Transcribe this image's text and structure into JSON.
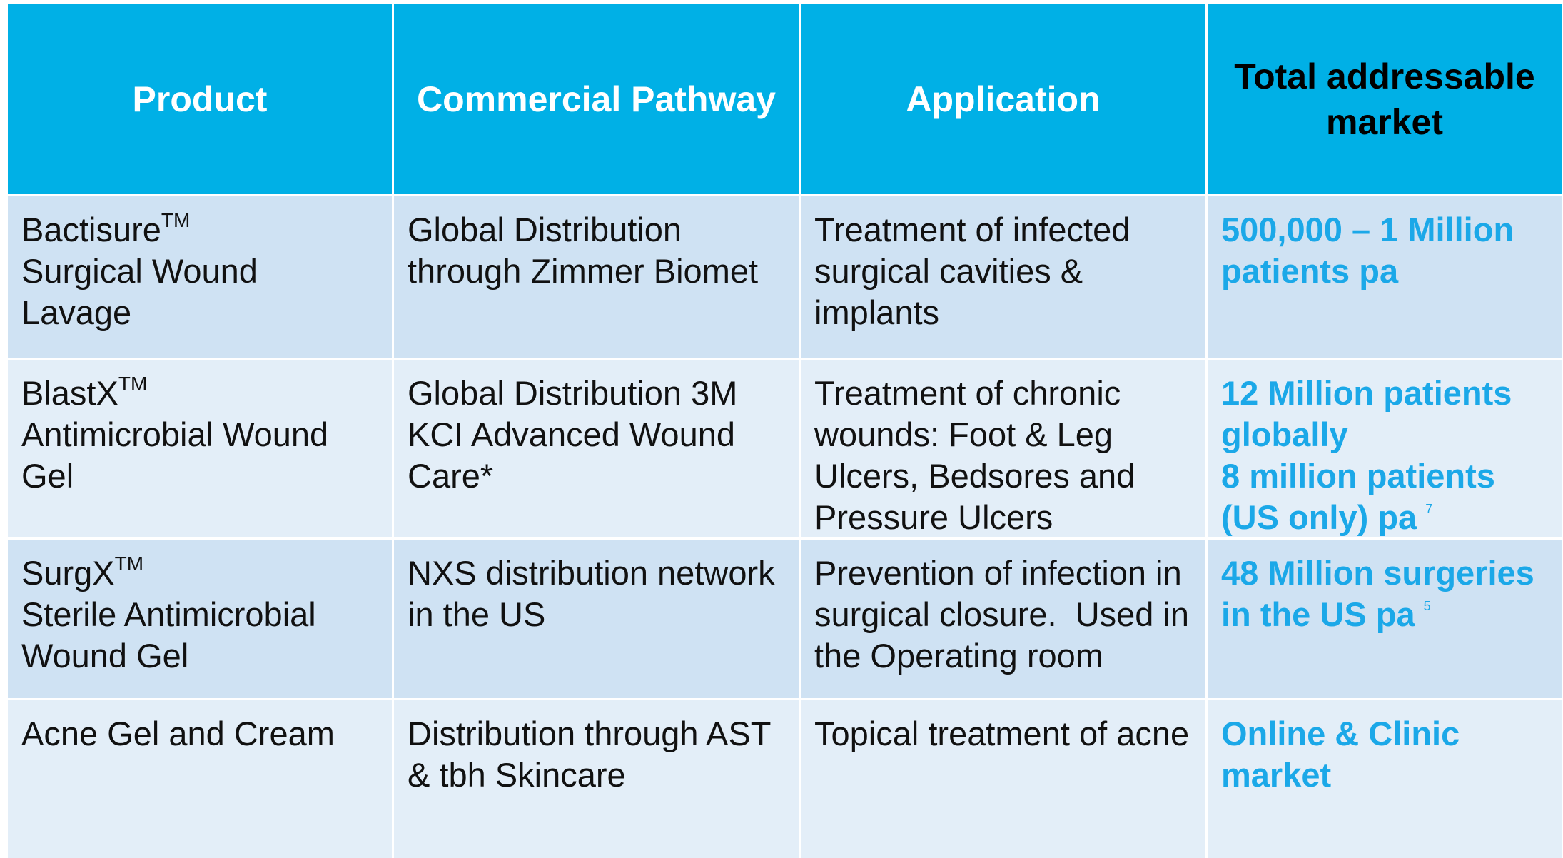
{
  "table": {
    "header": [
      "Product",
      "Commercial Pathway",
      "Application",
      "Total addressable market"
    ],
    "rows": [
      {
        "product": {
          "name": "Bactisure",
          "tm": "TM",
          "text": "Surgical Wound Lavage"
        },
        "pathway": "Global Distribution through Zimmer Biomet",
        "application": "Treatment of infected surgical cavities & implants",
        "market": [
          "500,000 – 1 Million patients pa"
        ]
      },
      {
        "product": {
          "name": "BlastX",
          "tm": "TM",
          "text": "Antimicrobial Wound Gel"
        },
        "pathway": "Global Distribution 3M KCI Advanced Wound Care*",
        "application": "Treatment of chronic wounds: Foot & Leg Ulcers, Bedsores and Pressure Ulcers",
        "market": [
          "12 Million patients globally",
          "8 million patients (US only) pa"
        ],
        "note": "7"
      },
      {
        "product": {
          "name": "SurgX",
          "tm": "TM",
          "text": "Sterile Antimicrobial Wound Gel"
        },
        "pathway": "NXS distribution network in the US",
        "application": "Prevention of infection in surgical closure.  Used in the Operating room",
        "market": [
          "48 Million surgeries in the US pa"
        ],
        "note": "5"
      },
      {
        "product": {
          "name": "Acne Gel and Cream"
        },
        "pathway": "Distribution through AST & tbh Skincare",
        "application": "Topical treatment of acne",
        "market": [
          "Online & Clinic market"
        ]
      }
    ]
  }
}
